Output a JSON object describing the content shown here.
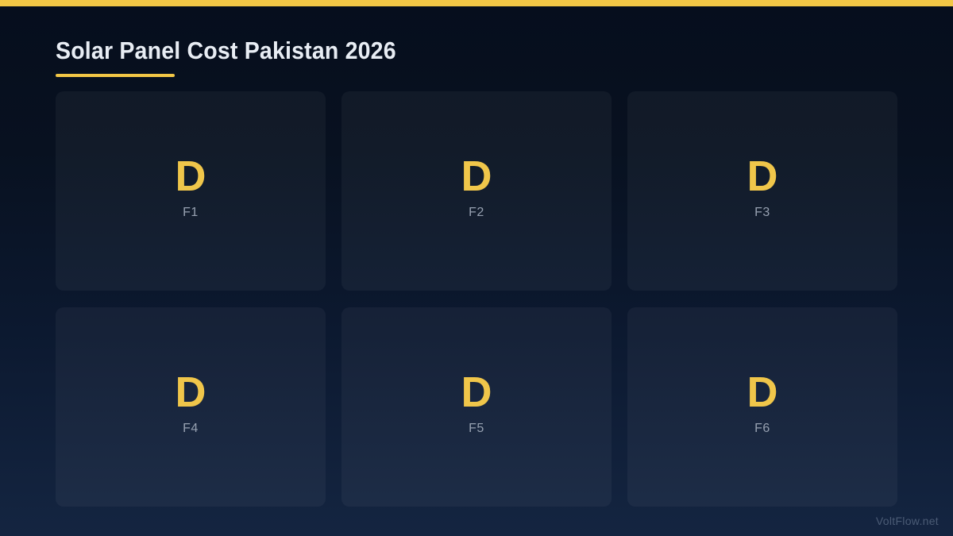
{
  "header": {
    "title": "Solar Panel Cost Pakistan 2026"
  },
  "cards": [
    {
      "letter": "D",
      "label": "F1"
    },
    {
      "letter": "D",
      "label": "F2"
    },
    {
      "letter": "D",
      "label": "F3"
    },
    {
      "letter": "D",
      "label": "F4"
    },
    {
      "letter": "D",
      "label": "F5"
    },
    {
      "letter": "D",
      "label": "F6"
    }
  ],
  "footer": {
    "watermark": "VoltFlow.net"
  },
  "colors": {
    "accent": "#f2c746",
    "card_letter": "#f0c64a",
    "background_top": "#060e1d",
    "background_bottom": "#142541"
  }
}
